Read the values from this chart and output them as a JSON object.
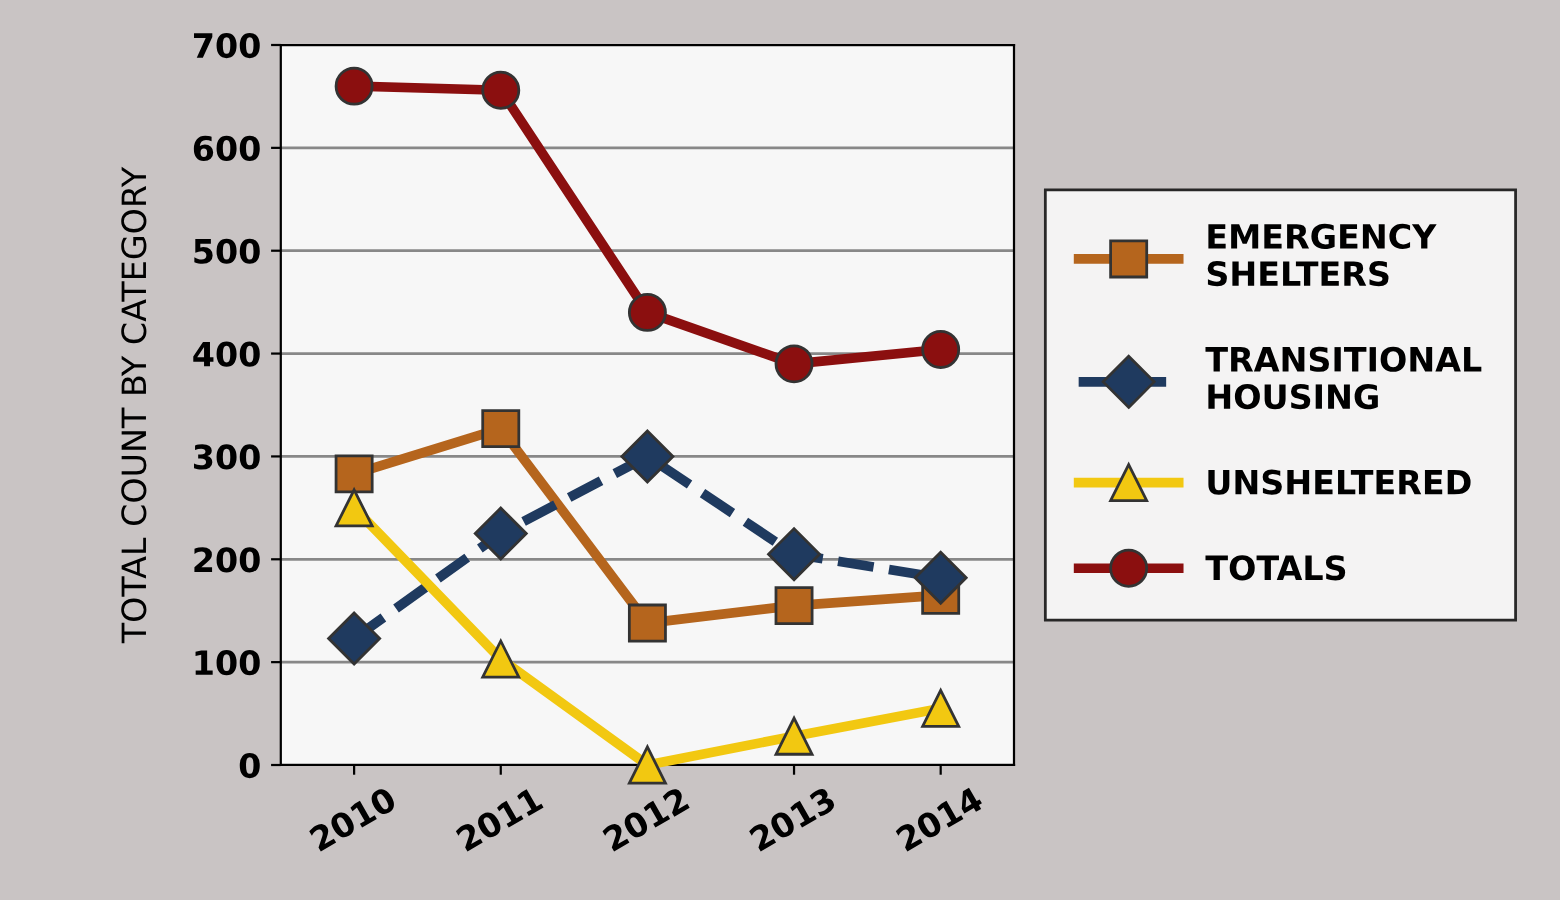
{
  "chart_data": {
    "type": "line",
    "ylabel": "TOTAL COUNT BY CATEGORY",
    "categories": [
      "2010",
      "2011",
      "2012",
      "2013",
      "2014"
    ],
    "series": [
      {
        "name": "EMERGENCY SHELTERS",
        "color": "#b5651d",
        "values": [
          283,
          327,
          138,
          155,
          165
        ],
        "marker": "square",
        "line_style": "solid"
      },
      {
        "name": "TRANSITIONAL HOUSING",
        "color": "#1f3a5f",
        "values": [
          123,
          225,
          300,
          205,
          182
        ],
        "marker": "diamond",
        "line_style": "dashed"
      },
      {
        "name": "UNSHELTERED",
        "color": "#f2c811",
        "values": [
          250,
          103,
          0,
          28,
          55
        ],
        "marker": "triangle",
        "line_style": "solid"
      },
      {
        "name": "TOTALS",
        "color": "#8b0f0f",
        "values": [
          660,
          656,
          440,
          390,
          404
        ],
        "marker": "circle",
        "line_style": "solid"
      }
    ],
    "ylim": [
      0,
      700
    ],
    "yticks": [
      0,
      100,
      200,
      300,
      400,
      500,
      600,
      700
    ],
    "grid": "y",
    "legend": "right"
  }
}
